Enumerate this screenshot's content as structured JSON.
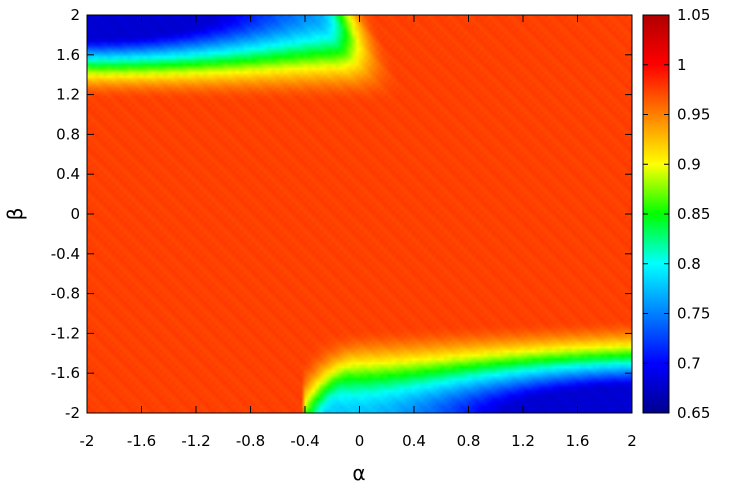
{
  "chart_data": {
    "type": "heatmap",
    "title": "",
    "xlabel": "α",
    "ylabel": "β",
    "xlim": [
      -2,
      2
    ],
    "ylim": [
      -2,
      2
    ],
    "x_ticks": [
      "-2",
      "-1.6",
      "-1.2",
      "-0.8",
      "-0.4",
      "0",
      "0.4",
      "0.8",
      "1.2",
      "1.6",
      "2"
    ],
    "y_ticks": [
      "-2",
      "-1.6",
      "-1.2",
      "-0.8",
      "-0.4",
      "0",
      "0.4",
      "0.8",
      "1.2",
      "1.6",
      "2"
    ],
    "colorbar": {
      "range": [
        0.65,
        1.05
      ],
      "ticks": [
        "0.65",
        "0.7",
        "0.75",
        "0.8",
        "0.85",
        "0.9",
        "0.95",
        "1",
        "1.05"
      ],
      "colormap": "jet"
    },
    "grid": false,
    "description_of_field": {
      "plateau_value": 1.0,
      "upper_left_min": 0.68,
      "lower_right_min": 0.68
    }
  }
}
